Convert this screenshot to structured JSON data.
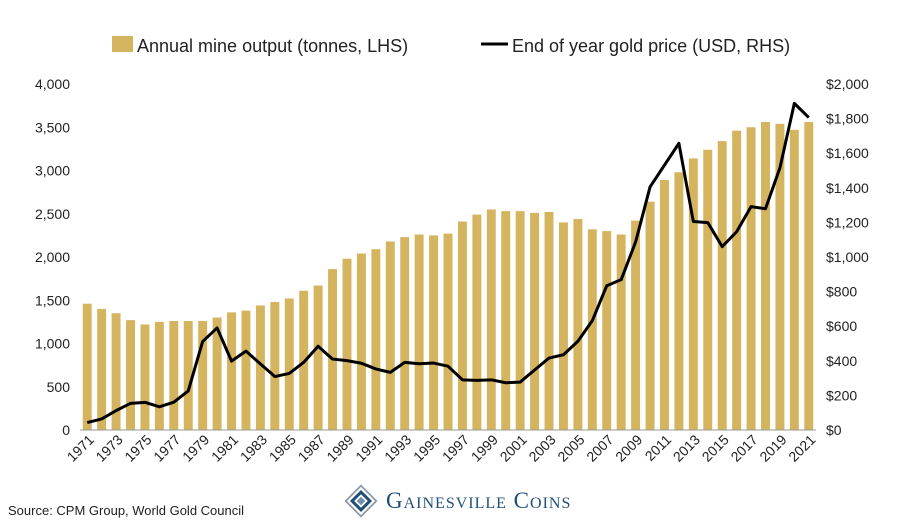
{
  "chart_data": {
    "type": "bar",
    "title": "",
    "xlabel": "",
    "ylabel": "",
    "categories": [
      "1971",
      "1972",
      "1973",
      "1974",
      "1975",
      "1976",
      "1977",
      "1978",
      "1979",
      "1980",
      "1981",
      "1982",
      "1983",
      "1984",
      "1985",
      "1986",
      "1987",
      "1988",
      "1989",
      "1990",
      "1991",
      "1992",
      "1993",
      "1994",
      "1995",
      "1996",
      "1997",
      "1998",
      "1999",
      "2000",
      "2001",
      "2002",
      "2003",
      "2004",
      "2005",
      "2006",
      "2007",
      "2008",
      "2009",
      "2010",
      "2011",
      "2012",
      "2013",
      "2014",
      "2015",
      "2016",
      "2017",
      "2018",
      "2019",
      "2020",
      "2021"
    ],
    "x_tick_labels": [
      "1971",
      "1973",
      "1975",
      "1977",
      "1979",
      "1981",
      "1983",
      "1985",
      "1987",
      "1989",
      "1991",
      "1993",
      "1995",
      "1997",
      "1999",
      "2001",
      "2003",
      "2005",
      "2007",
      "2009",
      "2011",
      "2013",
      "2015",
      "2017",
      "2019",
      "2021"
    ],
    "series": [
      {
        "name": "Annual mine output (tonnes, LHS)",
        "type": "bar",
        "axis": "left",
        "color": "#D4B45E",
        "values": [
          1460,
          1400,
          1350,
          1270,
          1220,
          1250,
          1260,
          1260,
          1260,
          1300,
          1360,
          1380,
          1440,
          1480,
          1520,
          1610,
          1670,
          1860,
          1980,
          2040,
          2090,
          2180,
          2230,
          2260,
          2250,
          2270,
          2410,
          2490,
          2550,
          2530,
          2530,
          2510,
          2520,
          2400,
          2440,
          2320,
          2300,
          2260,
          2420,
          2640,
          2890,
          2980,
          3140,
          3240,
          3340,
          3460,
          3500,
          3560,
          3540,
          3470,
          3560
        ]
      },
      {
        "name": "End of year gold price (USD, RHS)",
        "type": "line",
        "axis": "right",
        "color": "#000000",
        "values": [
          43,
          64,
          112,
          154,
          160,
          134,
          161,
          226,
          512,
          590,
          398,
          456,
          382,
          309,
          327,
          391,
          484,
          410,
          401,
          386,
          353,
          333,
          391,
          383,
          387,
          369,
          290,
          287,
          290,
          273,
          277,
          347,
          416,
          435,
          513,
          632,
          834,
          869,
          1087,
          1405,
          1531,
          1657,
          1205,
          1199,
          1060,
          1146,
          1291,
          1279,
          1515,
          1888,
          1806
        ]
      }
    ],
    "y_left": {
      "min": 0,
      "max": 4000,
      "ticks": [
        "0",
        "500",
        "1,000",
        "1,500",
        "2,000",
        "2,500",
        "3,000",
        "3,500",
        "4,000"
      ]
    },
    "y_right": {
      "min": 0,
      "max": 2000,
      "ticks": [
        "$0",
        "$200",
        "$400",
        "$600",
        "$800",
        "$1,000",
        "$1,200",
        "$1,400",
        "$1,600",
        "$1,800",
        "$2,000"
      ]
    },
    "legend_position": "top-center",
    "grid": false
  },
  "source_text": "Source: CPM Group, World Gold Council",
  "brand_text": "Gainesville Coins"
}
